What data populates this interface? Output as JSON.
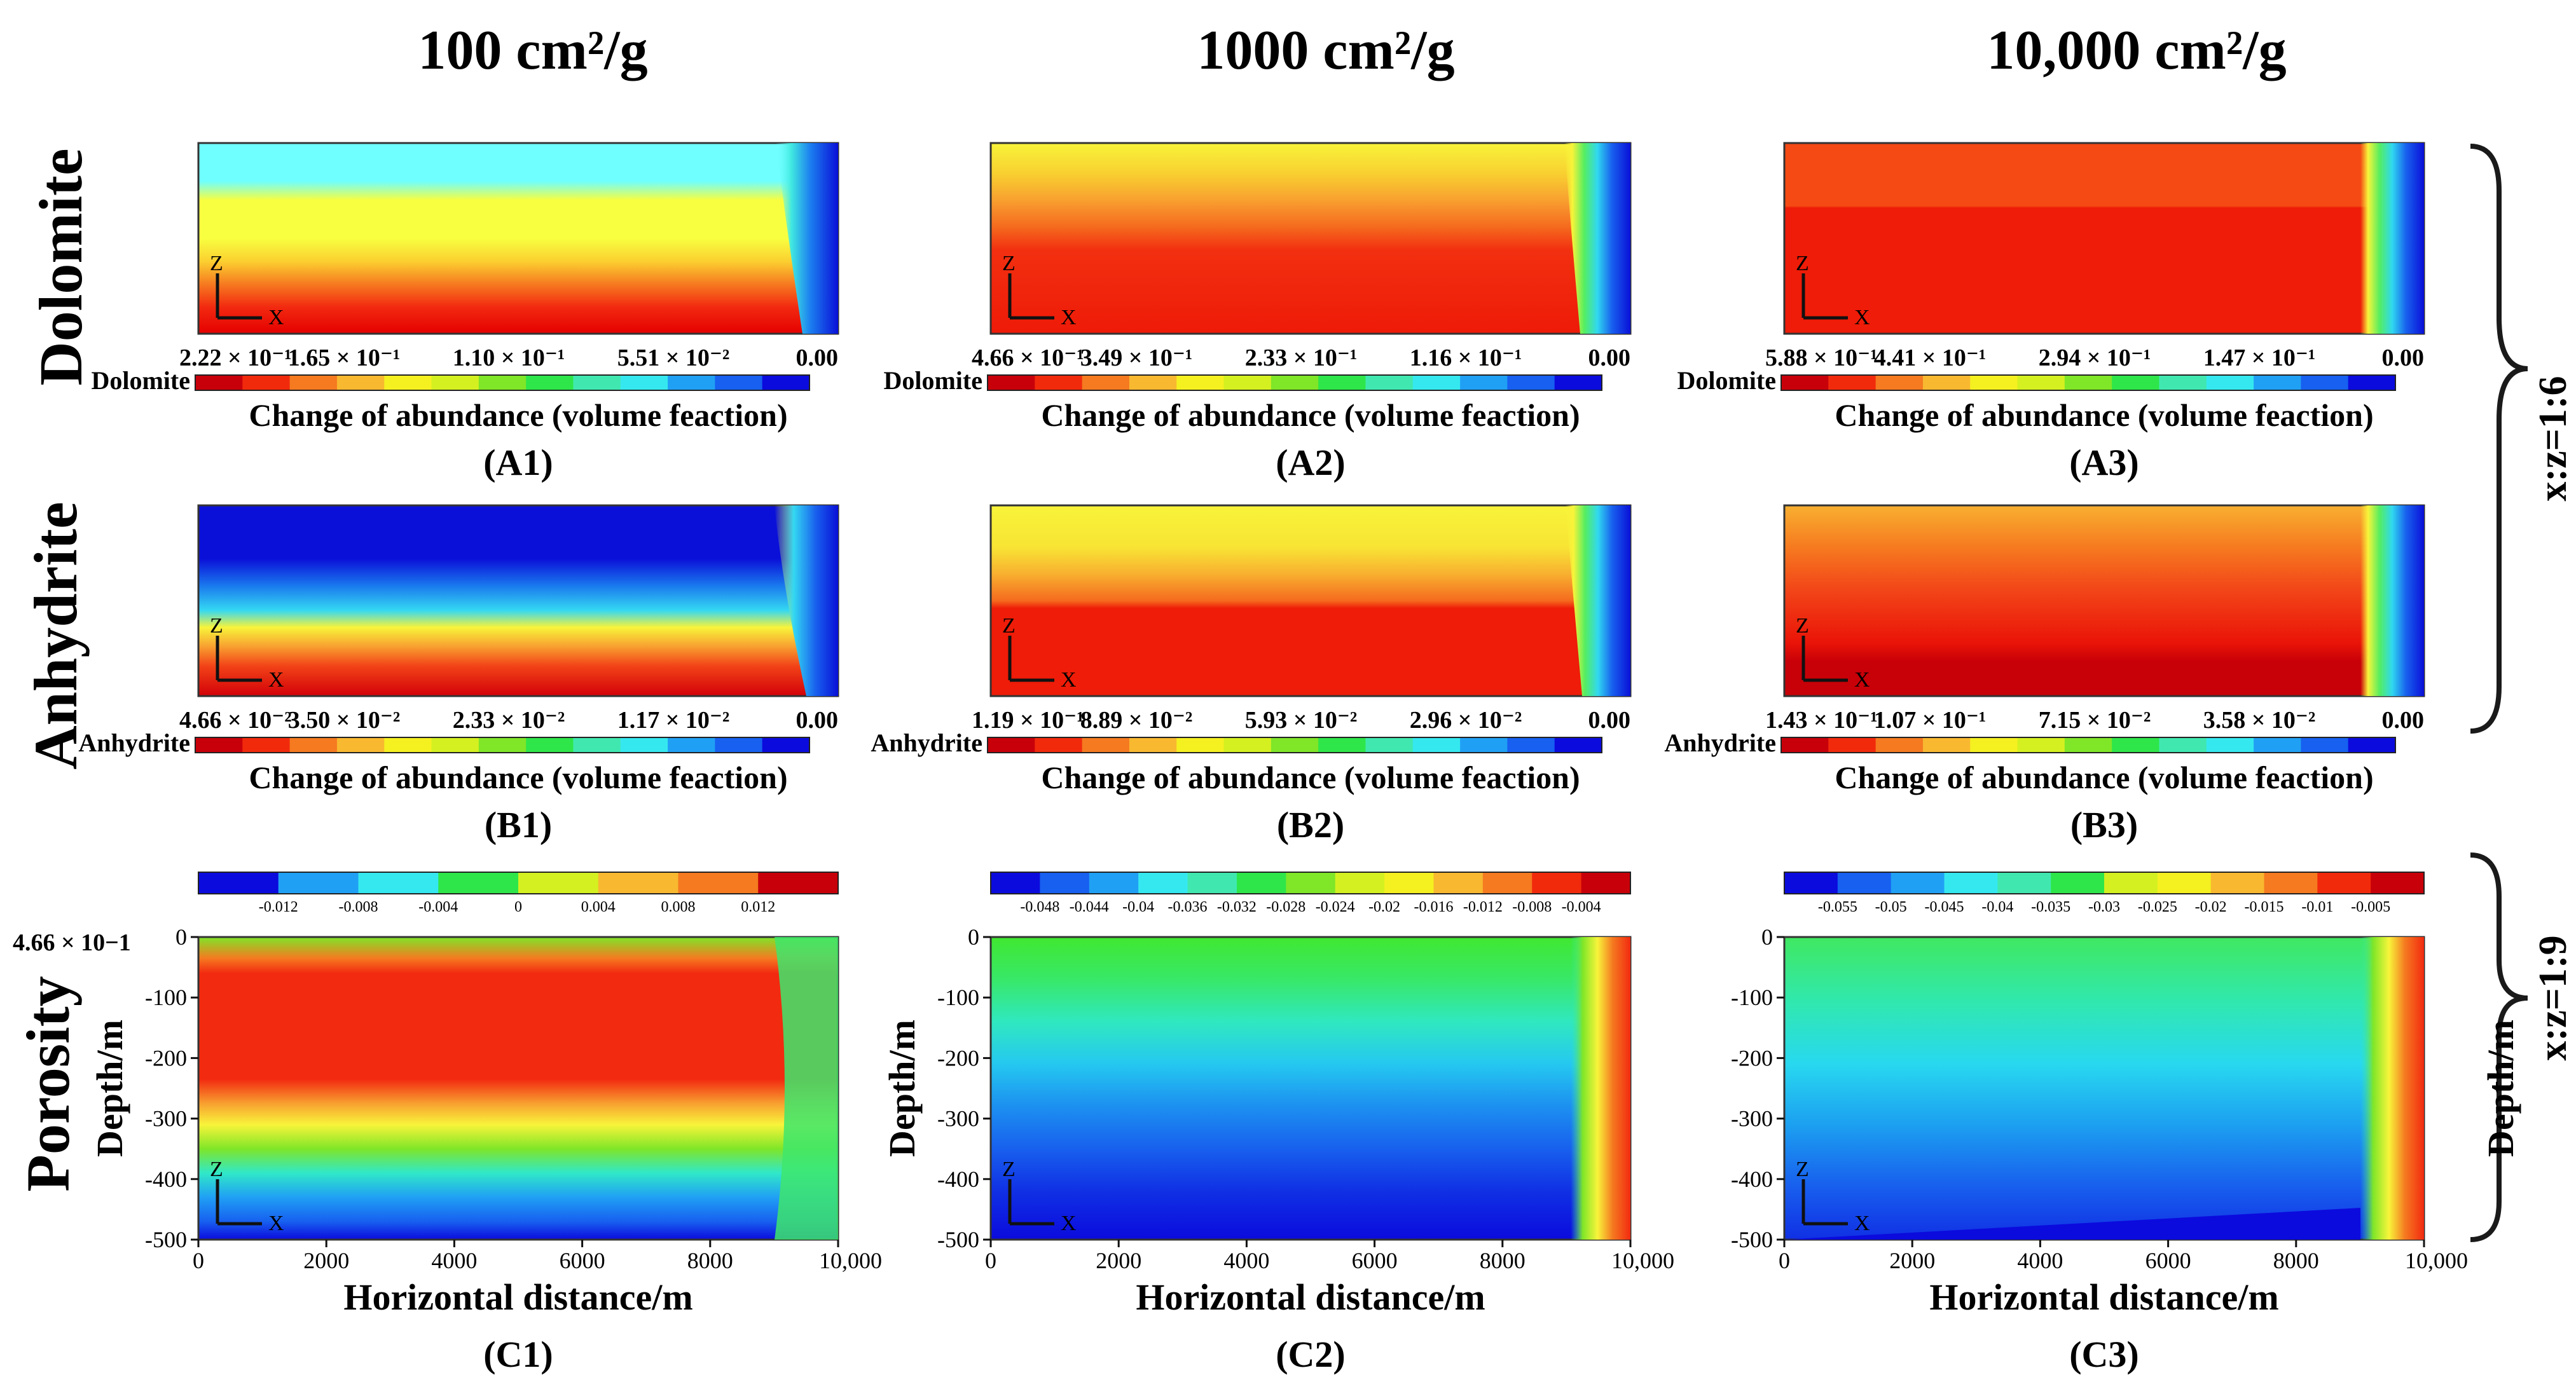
{
  "columns": [
    "100 cm²/g",
    "1000 cm²/g",
    "10,000 cm²/g"
  ],
  "rows": {
    "dolomite": "Dolomite",
    "anhydrite": "Anhydrite",
    "porosity": "Porosity"
  },
  "colorbar_caption": "Change of abundance (volume feaction)",
  "panels": {
    "A1": {
      "label": "(A1)",
      "name": "Dolomite",
      "ticks": [
        "2.22 × 10⁻¹",
        "1.65 × 10⁻¹",
        "1.10 × 10⁻¹",
        "5.51 × 10⁻²",
        "0.00"
      ]
    },
    "A2": {
      "label": "(A2)",
      "name": "Dolomite",
      "ticks": [
        "4.66 × 10⁻¹",
        "3.49 × 10⁻¹",
        "2.33 × 10⁻¹",
        "1.16 × 10⁻¹",
        "0.00"
      ]
    },
    "A3": {
      "label": "(A3)",
      "name": "Dolomite",
      "ticks": [
        "5.88 × 10⁻¹",
        "4.41 × 10⁻¹",
        "2.94 × 10⁻¹",
        "1.47 × 10⁻¹",
        "0.00"
      ]
    },
    "B1": {
      "label": "(B1)",
      "name": "Anhydrite",
      "ticks": [
        "4.66 × 10⁻²",
        "3.50 × 10⁻²",
        "2.33 × 10⁻²",
        "1.17 × 10⁻²",
        "0.00"
      ]
    },
    "B2": {
      "label": "(B2)",
      "name": "Anhydrite",
      "ticks": [
        "1.19 × 10⁻¹",
        "8.89 × 10⁻²",
        "5.93 × 10⁻²",
        "2.96 × 10⁻²",
        "0.00"
      ]
    },
    "B3": {
      "label": "(B3)",
      "name": "Anhydrite",
      "ticks": [
        "1.43 × 10⁻¹",
        "1.07 × 10⁻¹",
        "7.15 × 10⁻²",
        "3.58 × 10⁻²",
        "0.00"
      ]
    },
    "C1": {
      "label": "(C1)",
      "ticks": [
        "-0.012",
        "-0.008",
        "-0.004",
        "0",
        "0.004",
        "0.008",
        "0.012"
      ]
    },
    "C2": {
      "label": "(C2)",
      "ticks": [
        "-0.048",
        "-0.044",
        "-0.04",
        "-0.036",
        "-0.032",
        "-0.028",
        "-0.024",
        "-0.02",
        "-0.016",
        "-0.012",
        "-0.008",
        "-0.004"
      ]
    },
    "C3": {
      "label": "(C3)",
      "ticks": [
        "-0.055",
        "-0.05",
        "-0.045",
        "-0.04",
        "-0.035",
        "-0.03",
        "-0.025",
        "-0.02",
        "-0.015",
        "-0.01",
        "-0.005"
      ]
    }
  },
  "c1_corner_label": "4.66 × 10−1",
  "x_axis": {
    "title": "Horizontal distance/m",
    "ticks": [
      "0",
      "2000",
      "4000",
      "6000",
      "8000",
      "10,000"
    ]
  },
  "y_axis": {
    "title": "Depth/m",
    "ticks": [
      "0",
      "-100",
      "-200",
      "-300",
      "-400",
      "-500"
    ]
  },
  "axis_indicator": {
    "x": "X",
    "z": "Z"
  },
  "ratios": {
    "top": "x:z=1:6",
    "bottom": "x:z=1:9"
  },
  "colors": {
    "jet": [
      "#0b0bdd",
      "#1760f0",
      "#20a0f4",
      "#35e8f0",
      "#40e8b0",
      "#2ee64a",
      "#7fe628",
      "#d4f020",
      "#f5f020",
      "#f8b830",
      "#f57a20",
      "#f22a0c",
      "#c8000a"
    ]
  }
}
